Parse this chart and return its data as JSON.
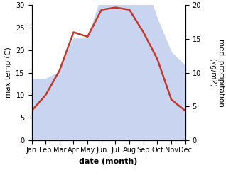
{
  "months": [
    "Jan",
    "Feb",
    "Mar",
    "Apr",
    "May",
    "Jun",
    "Jul",
    "Aug",
    "Sep",
    "Oct",
    "Nov",
    "Dec"
  ],
  "month_positions": [
    0,
    1,
    2,
    3,
    4,
    5,
    6,
    7,
    8,
    9,
    10,
    11
  ],
  "temperature": [
    6.5,
    10.0,
    15.5,
    24.0,
    23.0,
    29.0,
    29.5,
    29.0,
    24.0,
    18.0,
    9.0,
    6.5
  ],
  "precipitation": [
    9,
    9,
    10,
    15,
    15,
    21,
    29,
    29,
    24,
    18,
    13,
    11
  ],
  "temp_color": "#c0392b",
  "precip_fill_color": "#c8d4f0",
  "left_ylim": [
    0,
    30
  ],
  "right_ylim": [
    0,
    20
  ],
  "left_yticks": [
    0,
    5,
    10,
    15,
    20,
    25,
    30
  ],
  "right_yticks": [
    0,
    5,
    10,
    15,
    20
  ],
  "xlabel": "date (month)",
  "ylabel_left": "max temp (C)",
  "ylabel_right": "med. precipitation\n(kg/m2)",
  "line_width": 1.8,
  "tick_fontsize": 7,
  "label_fontsize": 7.5,
  "xlabel_fontsize": 8
}
